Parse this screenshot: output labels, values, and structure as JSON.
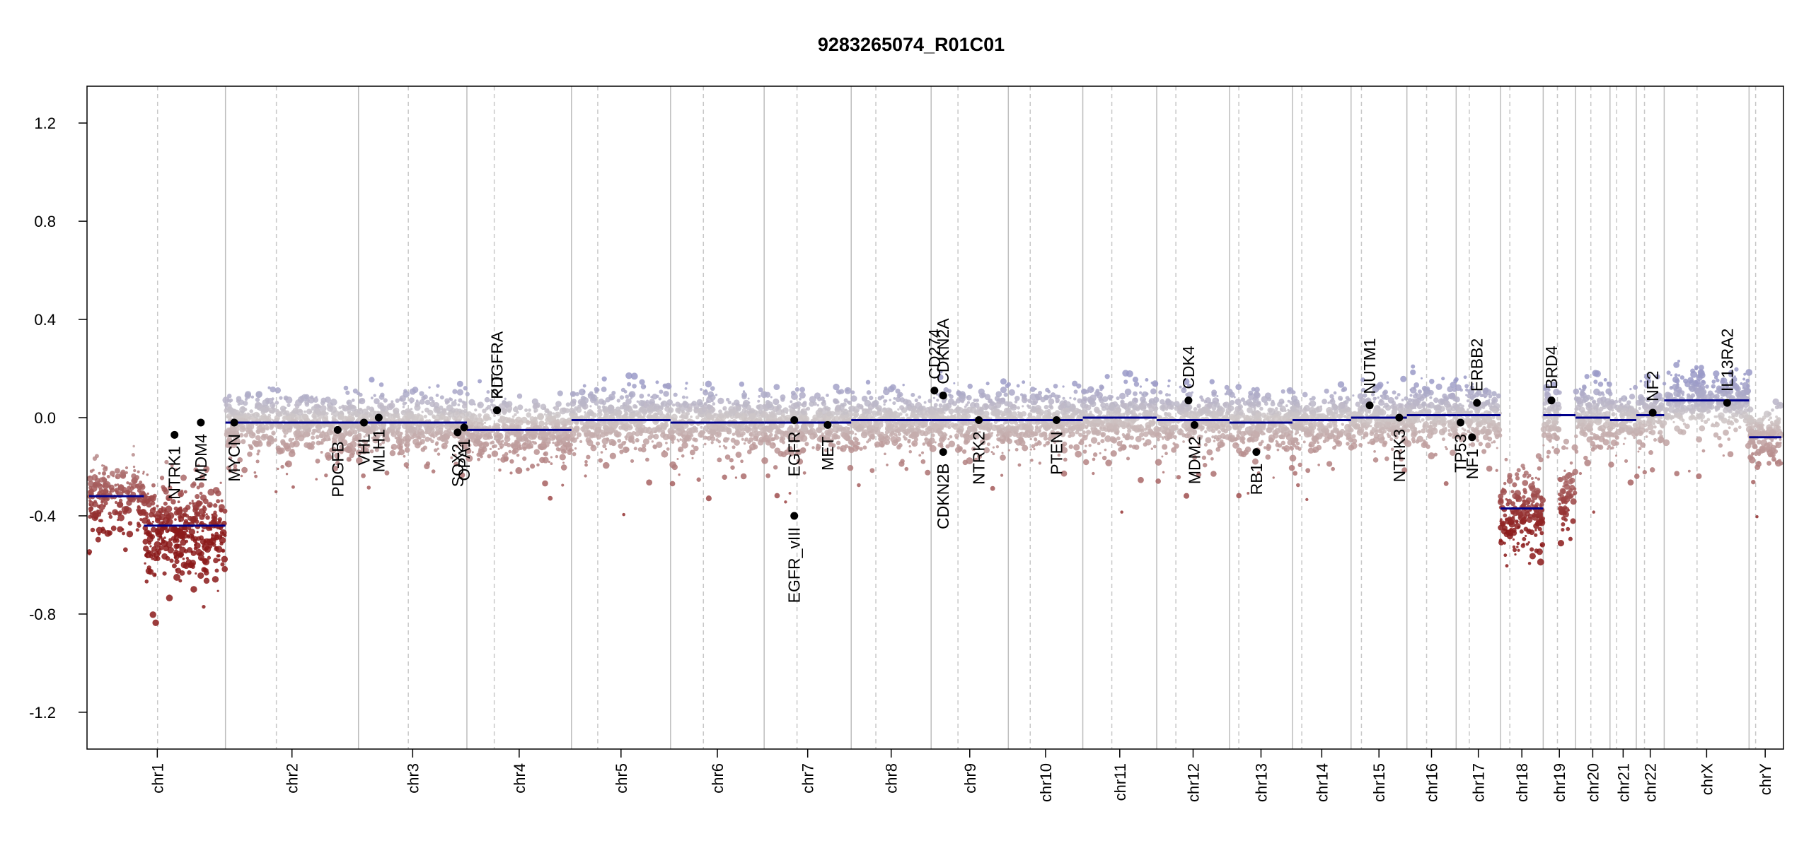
{
  "chart_data": {
    "type": "scatter",
    "title": "9283265074_R01C01",
    "xlabel": "",
    "ylabel": "",
    "ylim": [
      -1.35,
      1.35
    ],
    "y_ticks": [
      -1.2,
      -0.8,
      -0.4,
      0.0,
      0.4,
      0.8,
      1.2
    ],
    "y_tick_labels": [
      "-1.2",
      "-0.8",
      "-0.4",
      "0.0",
      "0.4",
      "0.8",
      "1.2"
    ],
    "colors": {
      "segment": "#00008b",
      "gain": "#9a9ac8",
      "neutral": "#cfc8c8",
      "loss": "#8b1a1a",
      "gene_point": "#000000",
      "arm_line": "#bdbdbd",
      "centromere_line": "#c8c8c8"
    },
    "chromosomes": [
      {
        "name": "chr1",
        "length": 249,
        "centromere": 125
      },
      {
        "name": "chr2",
        "length": 243,
        "centromere": 93
      },
      {
        "name": "chr3",
        "length": 198,
        "centromere": 91
      },
      {
        "name": "chr4",
        "length": 191,
        "centromere": 50
      },
      {
        "name": "chr5",
        "length": 181,
        "centromere": 48
      },
      {
        "name": "chr6",
        "length": 171,
        "centromere": 60
      },
      {
        "name": "chr7",
        "length": 159,
        "centromere": 60
      },
      {
        "name": "chr8",
        "length": 146,
        "centromere": 45
      },
      {
        "name": "chr9",
        "length": 141,
        "centromere": 49
      },
      {
        "name": "chr10",
        "length": 136,
        "centromere": 40
      },
      {
        "name": "chr11",
        "length": 135,
        "centromere": 53
      },
      {
        "name": "chr12",
        "length": 133,
        "centromere": 35
      },
      {
        "name": "chr13",
        "length": 115,
        "centromere": 17
      },
      {
        "name": "chr14",
        "length": 107,
        "centromere": 17
      },
      {
        "name": "chr15",
        "length": 102,
        "centromere": 19
      },
      {
        "name": "chr16",
        "length": 90,
        "centromere": 36
      },
      {
        "name": "chr17",
        "length": 81,
        "centromere": 24
      },
      {
        "name": "chr18",
        "length": 78,
        "centromere": 17
      },
      {
        "name": "chr19",
        "length": 59,
        "centromere": 26
      },
      {
        "name": "chr20",
        "length": 63,
        "centromere": 28
      },
      {
        "name": "chr21",
        "length": 48,
        "centromere": 12
      },
      {
        "name": "chr22",
        "length": 51,
        "centromere": 15
      },
      {
        "name": "chrX",
        "length": 155,
        "centromere": 60
      },
      {
        "name": "chrY",
        "length": 59,
        "centromere": 12
      }
    ],
    "segments": [
      {
        "chr": "chr1",
        "start": 0,
        "end": 100,
        "value": -0.32
      },
      {
        "chr": "chr1",
        "start": 100,
        "end": 249,
        "value": -0.44
      },
      {
        "chr": "chr1",
        "start": 249,
        "end": 340,
        "value": 0.0
      },
      {
        "chr": "chr2",
        "start": 0,
        "end": 243,
        "value": -0.02
      },
      {
        "chr": "chr3",
        "start": 0,
        "end": 198,
        "value": -0.02
      },
      {
        "chr": "chr4",
        "start": 0,
        "end": 191,
        "value": -0.05
      },
      {
        "chr": "chr5",
        "start": 0,
        "end": 181,
        "value": -0.01
      },
      {
        "chr": "chr6",
        "start": 0,
        "end": 171,
        "value": -0.02
      },
      {
        "chr": "chr7",
        "start": 0,
        "end": 159,
        "value": -0.02
      },
      {
        "chr": "chr8",
        "start": 0,
        "end": 146,
        "value": -0.01
      },
      {
        "chr": "chr9",
        "start": 0,
        "end": 141,
        "value": -0.01
      },
      {
        "chr": "chr10",
        "start": 0,
        "end": 136,
        "value": -0.01
      },
      {
        "chr": "chr11",
        "start": 0,
        "end": 135,
        "value": 0.0
      },
      {
        "chr": "chr12",
        "start": 0,
        "end": 133,
        "value": -0.01
      },
      {
        "chr": "chr13",
        "start": 0,
        "end": 115,
        "value": -0.02
      },
      {
        "chr": "chr14",
        "start": 0,
        "end": 107,
        "value": -0.01
      },
      {
        "chr": "chr15",
        "start": 0,
        "end": 102,
        "value": 0.0
      },
      {
        "chr": "chr16",
        "start": 0,
        "end": 90,
        "value": 0.01
      },
      {
        "chr": "chr17",
        "start": 0,
        "end": 81,
        "value": 0.01
      },
      {
        "chr": "chr18",
        "start": 0,
        "end": 78,
        "value": -0.37
      },
      {
        "chr": "chr19",
        "start": 0,
        "end": 59,
        "value": 0.01
      },
      {
        "chr": "chr20",
        "start": 0,
        "end": 63,
        "value": 0.0
      },
      {
        "chr": "chr21",
        "start": 0,
        "end": 48,
        "value": -0.01
      },
      {
        "chr": "chr22",
        "start": 0,
        "end": 51,
        "value": 0.01
      },
      {
        "chr": "chrX",
        "start": 0,
        "end": 155,
        "value": 0.07
      },
      {
        "chr": "chrY",
        "start": 0,
        "end": 59,
        "value": -0.08
      }
    ],
    "genes": [
      {
        "name": "NTRK1",
        "chr": "chr1",
        "pos": 156,
        "value": -0.07,
        "side": "below"
      },
      {
        "name": "MDM4",
        "chr": "chr1",
        "pos": 204,
        "value": -0.02,
        "side": "below"
      },
      {
        "name": "MYCN",
        "chr": "chr2",
        "pos": 16,
        "value": -0.02,
        "side": "below"
      },
      {
        "name": "PDGFB",
        "chr": "chr2",
        "pos": 205,
        "value": -0.05,
        "side": "below"
      },
      {
        "name": "VHL",
        "chr": "chr3",
        "pos": 10,
        "value": -0.02,
        "side": "below"
      },
      {
        "name": "MLH1",
        "chr": "chr3",
        "pos": 37,
        "value": 0.0,
        "side": "below"
      },
      {
        "name": "SOX2",
        "chr": "chr3",
        "pos": 181,
        "value": -0.06,
        "side": "below"
      },
      {
        "name": "OPA1",
        "chr": "chr3",
        "pos": 193,
        "value": -0.04,
        "side": "below"
      },
      {
        "name": "KIT",
        "chr": "chr4",
        "pos": 55,
        "value": 0.03,
        "side": "above"
      },
      {
        "name": "PDGFRA",
        "chr": "chr4",
        "pos": 55,
        "value": 0.03,
        "side": "above"
      },
      {
        "name": "EGFR",
        "chr": "chr7",
        "pos": 55,
        "value": -0.01,
        "side": "below"
      },
      {
        "name": "EGFR_vIII",
        "chr": "chr7",
        "pos": 55,
        "value": -0.4,
        "side": "below"
      },
      {
        "name": "MET",
        "chr": "chr7",
        "pos": 116,
        "value": -0.03,
        "side": "below"
      },
      {
        "name": "CD274",
        "chr": "chr9",
        "pos": 6,
        "value": 0.11,
        "side": "above"
      },
      {
        "name": "CDKN2A",
        "chr": "chr9",
        "pos": 22,
        "value": 0.09,
        "side": "above"
      },
      {
        "name": "CDKN2B",
        "chr": "chr9",
        "pos": 22,
        "value": -0.14,
        "side": "below"
      },
      {
        "name": "NTRK2",
        "chr": "chr9",
        "pos": 87,
        "value": -0.01,
        "side": "below"
      },
      {
        "name": "PTEN",
        "chr": "chr10",
        "pos": 88,
        "value": -0.01,
        "side": "below"
      },
      {
        "name": "CDK4",
        "chr": "chr12",
        "pos": 58,
        "value": 0.07,
        "side": "above"
      },
      {
        "name": "MDM2",
        "chr": "chr12",
        "pos": 69,
        "value": -0.03,
        "side": "below"
      },
      {
        "name": "RB1",
        "chr": "chr13",
        "pos": 49,
        "value": -0.14,
        "side": "below"
      },
      {
        "name": "NUTM1",
        "chr": "chr15",
        "pos": 34,
        "value": 0.05,
        "side": "above"
      },
      {
        "name": "NTRK3",
        "chr": "chr15",
        "pos": 88,
        "value": 0.0,
        "side": "below"
      },
      {
        "name": "TP53",
        "chr": "chr17",
        "pos": 8,
        "value": -0.02,
        "side": "below"
      },
      {
        "name": "NF1",
        "chr": "chr17",
        "pos": 29,
        "value": -0.08,
        "side": "below"
      },
      {
        "name": "ERBB2",
        "chr": "chr17",
        "pos": 38,
        "value": 0.06,
        "side": "above"
      },
      {
        "name": "BRD4",
        "chr": "chr19",
        "pos": 15,
        "value": 0.07,
        "side": "above"
      },
      {
        "name": "NF2",
        "chr": "chr22",
        "pos": 30,
        "value": 0.02,
        "side": "above"
      },
      {
        "name": "IL13RA2",
        "chr": "chrX",
        "pos": 115,
        "value": 0.06,
        "side": "above"
      }
    ],
    "probe_noise": [
      {
        "chr": "chr1",
        "start": 0,
        "end": 100,
        "mean": -0.32,
        "sd": 0.08
      },
      {
        "chr": "chr1",
        "start": 100,
        "end": 249,
        "mean": -0.45,
        "sd": 0.1
      },
      {
        "chr": "chr18",
        "start": 0,
        "end": 78,
        "mean": -0.38,
        "sd": 0.09
      },
      {
        "chr": "chr19",
        "start": 30,
        "end": 59,
        "mean": -0.33,
        "sd": 0.09
      }
    ],
    "grid": false,
    "legend": "none"
  }
}
